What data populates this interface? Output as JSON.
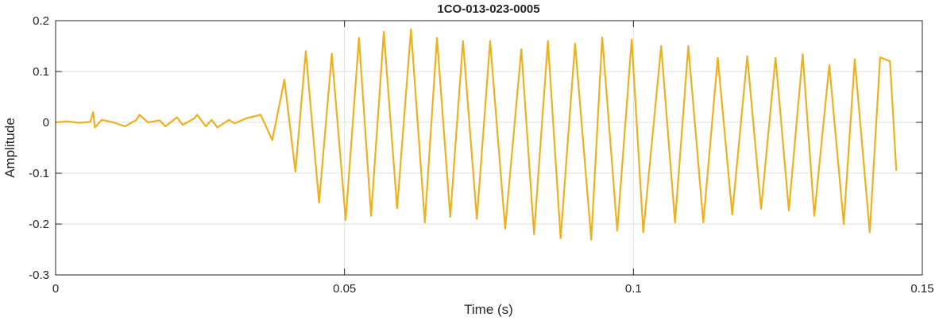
{
  "chart_data": {
    "type": "line",
    "title": "1CO-013-023-0005",
    "xlabel": "Time (s)",
    "ylabel": "Amplitude",
    "color": "#EDB120",
    "grid": true,
    "xlim": [
      0,
      0.15
    ],
    "ylim": [
      -0.3,
      0.2
    ],
    "xticks": [
      0,
      0.05,
      0.1,
      0.15
    ],
    "yticks": [
      -0.3,
      -0.2,
      -0.1,
      0,
      0.1,
      0.2
    ],
    "x": [
      0,
      0.002,
      0.004,
      0.006,
      0.0065,
      0.0068,
      0.008,
      0.01,
      0.012,
      0.014,
      0.0145,
      0.016,
      0.018,
      0.019,
      0.021,
      0.022,
      0.024,
      0.0245,
      0.026,
      0.027,
      0.028,
      0.03,
      0.031,
      0.033,
      0.0355,
      0.0375,
      0.0396,
      0.0415,
      0.0433,
      0.0456,
      0.0478,
      0.0502,
      0.0525,
      0.0546,
      0.0568,
      0.0591,
      0.0615,
      0.0639,
      0.066,
      0.0683,
      0.0705,
      0.0729,
      0.0752,
      0.0778,
      0.0806,
      0.0828,
      0.0852,
      0.0874,
      0.0899,
      0.0927,
      0.0946,
      0.0972,
      0.0997,
      0.1017,
      0.1048,
      0.1072,
      0.1095,
      0.1121,
      0.1146,
      0.1171,
      0.1197,
      0.1221,
      0.1246,
      0.1269,
      0.1293,
      0.1313,
      0.1339,
      0.1364,
      0.1383,
      0.1409,
      0.1427,
      0.1444,
      0.1455
    ],
    "values": [
      0,
      0.002,
      -0.001,
      0.001,
      0.02,
      -0.01,
      0.005,
      0,
      -0.008,
      0.005,
      0.015,
      0,
      0.004,
      -0.008,
      0.01,
      -0.005,
      0.008,
      0.015,
      -0.008,
      0.005,
      -0.01,
      0.005,
      -0.002,
      0.008,
      0.015,
      -0.035,
      0.084,
      -0.097,
      0.14,
      -0.158,
      0.135,
      -0.192,
      0.166,
      -0.184,
      0.178,
      -0.169,
      0.183,
      -0.197,
      0.166,
      -0.186,
      0.16,
      -0.19,
      0.16,
      -0.209,
      0.144,
      -0.22,
      0.16,
      -0.228,
      0.155,
      -0.231,
      0.167,
      -0.213,
      0.163,
      -0.216,
      0.15,
      -0.197,
      0.15,
      -0.197,
      0.127,
      -0.181,
      0.13,
      -0.17,
      0.127,
      -0.173,
      0.134,
      -0.184,
      0.113,
      -0.2,
      0.124,
      -0.216,
      0.128,
      0.12,
      -0.095
    ]
  }
}
